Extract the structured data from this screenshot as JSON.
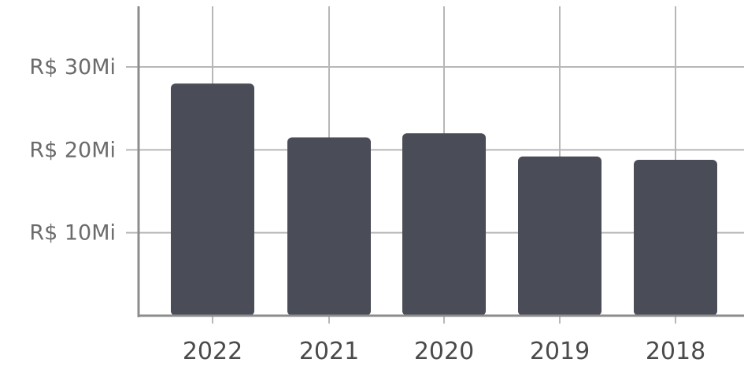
{
  "chart_data": {
    "type": "bar",
    "categories": [
      "2022",
      "2021",
      "2020",
      "2019",
      "2018"
    ],
    "values": [
      28,
      21.5,
      22,
      19.2,
      18.8
    ],
    "ylim": [
      0,
      30
    ],
    "yticks": [
      {
        "value": 10,
        "label": "R$ 10Mi"
      },
      {
        "value": 20,
        "label": "R$ 20Mi"
      },
      {
        "value": 30,
        "label": "R$ 30Mi"
      }
    ],
    "grid": true,
    "bar_color": "#4a4d57",
    "grid_color": "#b7b7b7",
    "axis_color": "#8c8c8c"
  }
}
